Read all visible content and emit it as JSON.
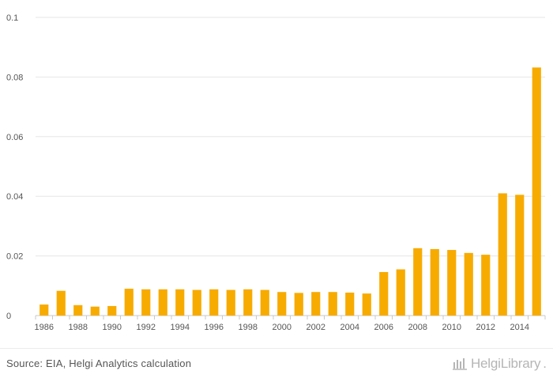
{
  "chart_data": {
    "type": "bar",
    "title": "",
    "xlabel": "",
    "ylabel": "",
    "x": [
      1986,
      1987,
      1988,
      1989,
      1990,
      1991,
      1992,
      1993,
      1994,
      1995,
      1996,
      1997,
      1998,
      1999,
      2000,
      2001,
      2002,
      2003,
      2004,
      2005,
      2006,
      2007,
      2008,
      2009,
      2010,
      2011,
      2012,
      2013,
      2014,
      2015
    ],
    "values": [
      0.0037,
      0.0083,
      0.0035,
      0.003,
      0.0032,
      0.009,
      0.0088,
      0.0088,
      0.0088,
      0.0086,
      0.0088,
      0.0086,
      0.0088,
      0.0086,
      0.0079,
      0.0076,
      0.0079,
      0.0079,
      0.0077,
      0.0074,
      0.0146,
      0.0155,
      0.0226,
      0.0223,
      0.022,
      0.021,
      0.0204,
      0.041,
      0.0405,
      0.0832
    ],
    "x_tick_labels": [
      "1986",
      "1988",
      "1990",
      "1992",
      "1994",
      "1996",
      "1998",
      "2000",
      "2002",
      "2004",
      "2006",
      "2008",
      "2010",
      "2012",
      "2014"
    ],
    "y_tick_labels": [
      "0",
      "0.02",
      "0.04",
      "0.06",
      "0.08",
      "0.1"
    ],
    "ylim": [
      0,
      0.1
    ],
    "grid": true,
    "bar_color": "#f7ab00"
  },
  "footer": {
    "source": "Source: EIA, Helgi Analytics calculation",
    "brand_name": "HelgiLibrary",
    "brand_dot": "."
  },
  "colors": {
    "grid": "#e6e6e6",
    "axis": "#c8c8c8",
    "tick_text": "#555555",
    "brand": "#b5b5b5"
  }
}
